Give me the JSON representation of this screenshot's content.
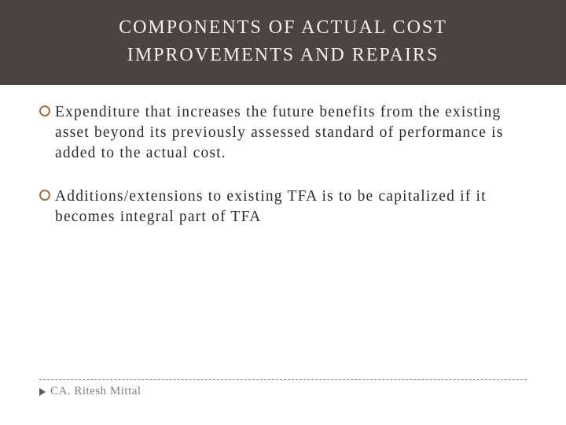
{
  "colors": {
    "header_bg": "#4b4340",
    "header_text": "#f4f0ec",
    "bullet_ring": "#a46f3f",
    "body_text": "#2b2b2b",
    "footer_rule": "#7a7a7a",
    "footer_text": "#7e7e7e",
    "footer_arrow": "#5a5a5a",
    "slide_bg": "#ffffff"
  },
  "typography": {
    "title_fontsize": 24,
    "title_letterspacing": 2,
    "body_fontsize": 19.5,
    "body_letterspacing": 1.2,
    "footer_fontsize": 15
  },
  "header": {
    "title_line1": "COMPONENTS OF ACTUAL COST",
    "title_line2": "IMPROVEMENTS AND REPAIRS"
  },
  "bullets": [
    {
      "text": "Expenditure that increases the future benefits from the existing asset beyond its previously assessed standard of performance is added to the actual cost."
    },
    {
      "text": "Additions/extensions to existing TFA is to be capitalized if it becomes integral part of TFA"
    }
  ],
  "footer": {
    "author": "CA. Ritesh Mittal"
  }
}
